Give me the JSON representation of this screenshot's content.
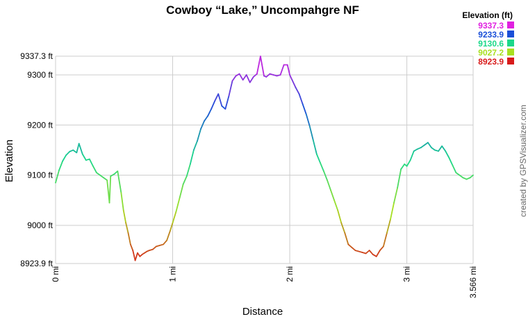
{
  "chart_data": {
    "type": "line",
    "title": "Cowboy “Lake,” Uncompahgre NF",
    "xlabel": "Distance",
    "ylabel": "Elevation",
    "credit": "created by GPSVisualizer.com",
    "grid": true,
    "xlim": [
      0,
      3.566
    ],
    "ylim": [
      8923.9,
      9337.3
    ],
    "x_ticks": [
      {
        "value": 0,
        "label": "0 mi"
      },
      {
        "value": 1,
        "label": "1 mi"
      },
      {
        "value": 2,
        "label": "2 mi"
      },
      {
        "value": 3,
        "label": "3 mi"
      },
      {
        "value": 3.566,
        "label": "3.566 mi"
      }
    ],
    "y_ticks": [
      {
        "value": 9337.3,
        "label": "9337.3 ft"
      },
      {
        "value": 9300,
        "label": "9300 ft"
      },
      {
        "value": 9200,
        "label": "9200 ft"
      },
      {
        "value": 9100,
        "label": "9100 ft"
      },
      {
        "value": 9000,
        "label": "9000 ft"
      },
      {
        "value": 8923.9,
        "label": "8923.9 ft"
      }
    ],
    "legend": {
      "title": "Elevation (ft)",
      "placement": "top-right",
      "entries": [
        {
          "label": "9337.3",
          "color": "#e020e0"
        },
        {
          "label": "9233.9",
          "color": "#1a4fd8"
        },
        {
          "label": "9130.6",
          "color": "#1ad88a"
        },
        {
          "label": "9027.2",
          "color": "#a8e020"
        },
        {
          "label": "8923.9",
          "color": "#d81a1a"
        }
      ]
    },
    "series": [
      {
        "x": [
          0,
          0.03,
          0.06,
          0.09,
          0.12,
          0.15,
          0.18,
          0.2,
          0.23,
          0.26,
          0.29,
          0.32,
          0.35,
          0.38,
          0.41,
          0.44,
          0.46,
          0.47,
          0.5,
          0.53,
          0.56,
          0.58,
          0.6,
          0.62,
          0.64,
          0.66,
          0.68,
          0.7,
          0.72,
          0.74,
          0.76,
          0.78,
          0.8,
          0.83,
          0.86,
          0.89,
          0.92,
          0.95,
          0.98,
          1.0,
          1.03,
          1.06,
          1.09,
          1.12,
          1.15,
          1.18,
          1.21,
          1.24,
          1.27,
          1.3,
          1.33,
          1.36,
          1.39,
          1.42,
          1.45,
          1.48,
          1.51,
          1.54,
          1.57,
          1.6,
          1.63,
          1.66,
          1.69,
          1.72,
          1.75,
          1.78,
          1.8,
          1.83,
          1.86,
          1.89,
          1.92,
          1.95,
          1.98,
          2.0,
          2.02,
          2.05,
          2.08,
          2.11,
          2.14,
          2.17,
          2.2,
          2.23,
          2.26,
          2.29,
          2.32,
          2.35,
          2.38,
          2.41,
          2.44,
          2.47,
          2.5,
          2.53,
          2.56,
          2.59,
          2.62,
          2.65,
          2.68,
          2.71,
          2.74,
          2.77,
          2.8,
          2.83,
          2.86,
          2.89,
          2.92,
          2.95,
          2.98,
          3.0,
          3.03,
          3.06,
          3.09,
          3.12,
          3.15,
          3.18,
          3.21,
          3.24,
          3.27,
          3.3,
          3.33,
          3.36,
          3.39,
          3.42,
          3.45,
          3.48,
          3.51,
          3.54,
          3.566
        ],
        "y": [
          9085,
          9110,
          9128,
          9140,
          9147,
          9150,
          9145,
          9163,
          9142,
          9130,
          9132,
          9118,
          9105,
          9100,
          9095,
          9090,
          9045,
          9098,
          9102,
          9108,
          9065,
          9030,
          9005,
          8985,
          8962,
          8950,
          8930,
          8945,
          8938,
          8942,
          8945,
          8948,
          8950,
          8952,
          8958,
          8960,
          8962,
          8970,
          8990,
          9005,
          9028,
          9055,
          9082,
          9098,
          9122,
          9150,
          9168,
          9192,
          9208,
          9218,
          9232,
          9248,
          9262,
          9238,
          9232,
          9258,
          9288,
          9298,
          9302,
          9290,
          9300,
          9285,
          9296,
          9302,
          9337,
          9298,
          9296,
          9302,
          9300,
          9298,
          9300,
          9320,
          9320,
          9300,
          9290,
          9275,
          9262,
          9242,
          9222,
          9198,
          9170,
          9142,
          9125,
          9108,
          9090,
          9070,
          9050,
          9030,
          9005,
          8985,
          8962,
          8956,
          8950,
          8948,
          8946,
          8944,
          8950,
          8942,
          8938,
          8950,
          8958,
          8985,
          9012,
          9045,
          9075,
          9112,
          9122,
          9118,
          9130,
          9148,
          9152,
          9155,
          9160,
          9165,
          9155,
          9150,
          9148,
          9158,
          9148,
          9135,
          9120,
          9105,
          9100,
          9095,
          9092,
          9095,
          9100
        ]
      }
    ]
  }
}
